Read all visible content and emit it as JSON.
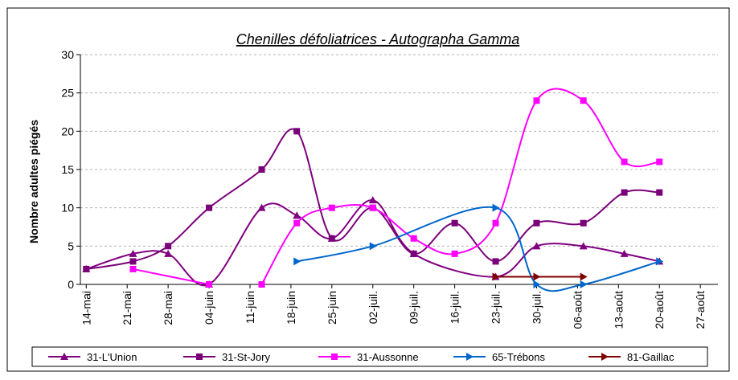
{
  "chart_data": {
    "type": "line",
    "title": "Chenilles défoliatrices - Autographa Gamma",
    "y_label": "Nombre adultes piégés",
    "xlim": [
      -1,
      108
    ],
    "xticks": [
      {
        "value": 0,
        "label": "14-mai"
      },
      {
        "value": 7,
        "label": "21-mai"
      },
      {
        "value": 14,
        "label": "28-mai"
      },
      {
        "value": 21,
        "label": "04-juin"
      },
      {
        "value": 28,
        "label": "11-juin"
      },
      {
        "value": 35,
        "label": "18-juin"
      },
      {
        "value": 42,
        "label": "25-juin"
      },
      {
        "value": 49,
        "label": "02-juil."
      },
      {
        "value": 56,
        "label": "09-juil."
      },
      {
        "value": 63,
        "label": "16-juil."
      },
      {
        "value": 70,
        "label": "23-juil."
      },
      {
        "value": 77,
        "label": "30-juil."
      },
      {
        "value": 84,
        "label": "06-août"
      },
      {
        "value": 91,
        "label": "13-août"
      },
      {
        "value": 98,
        "label": "20-août"
      },
      {
        "value": 105,
        "label": "27-août"
      }
    ],
    "ylim": [
      0,
      30
    ],
    "yticks": [
      0,
      5,
      10,
      15,
      20,
      25,
      30
    ],
    "grid": true,
    "smooth": true,
    "legend": "bottom",
    "series": [
      {
        "name": "31-L'Union",
        "color": "#800080",
        "marker": "triangle",
        "x": [
          0,
          8,
          14,
          21,
          30,
          36,
          42,
          49,
          56,
          70,
          77,
          85,
          92,
          98
        ],
        "values": [
          2,
          4,
          4,
          0,
          10,
          9,
          6,
          11,
          4,
          1,
          5,
          5,
          4,
          3
        ]
      },
      {
        "name": "31-St-Jory",
        "color": "#7a007a",
        "marker": "square",
        "x": [
          0,
          8,
          14,
          21,
          30,
          36,
          42,
          49,
          56,
          63,
          70,
          77,
          85,
          92,
          98
        ],
        "values": [
          2,
          3,
          5,
          10,
          15,
          20,
          6,
          10,
          4,
          8,
          3,
          8,
          8,
          12,
          12
        ]
      },
      {
        "name": "31-Aussonne",
        "color": "#ff00ff",
        "marker": "square",
        "x": [
          8,
          21,
          25,
          30,
          36,
          42,
          49,
          56,
          63,
          70,
          77,
          85,
          92,
          98
        ],
        "values": [
          2,
          0,
          null,
          0,
          8,
          10,
          10,
          6,
          4,
          8,
          24,
          24,
          16,
          16
        ]
      },
      {
        "name": "65-Trébons",
        "color": "#0066cc",
        "marker": "arrow",
        "x": [
          36,
          49,
          70,
          77,
          85,
          98
        ],
        "values": [
          3,
          5,
          10,
          0,
          0,
          3
        ]
      },
      {
        "name": "81-Gaillac",
        "color": "#800000",
        "marker": "arrow",
        "x": [
          70,
          77,
          85
        ],
        "values": [
          1,
          1,
          1
        ]
      }
    ]
  }
}
